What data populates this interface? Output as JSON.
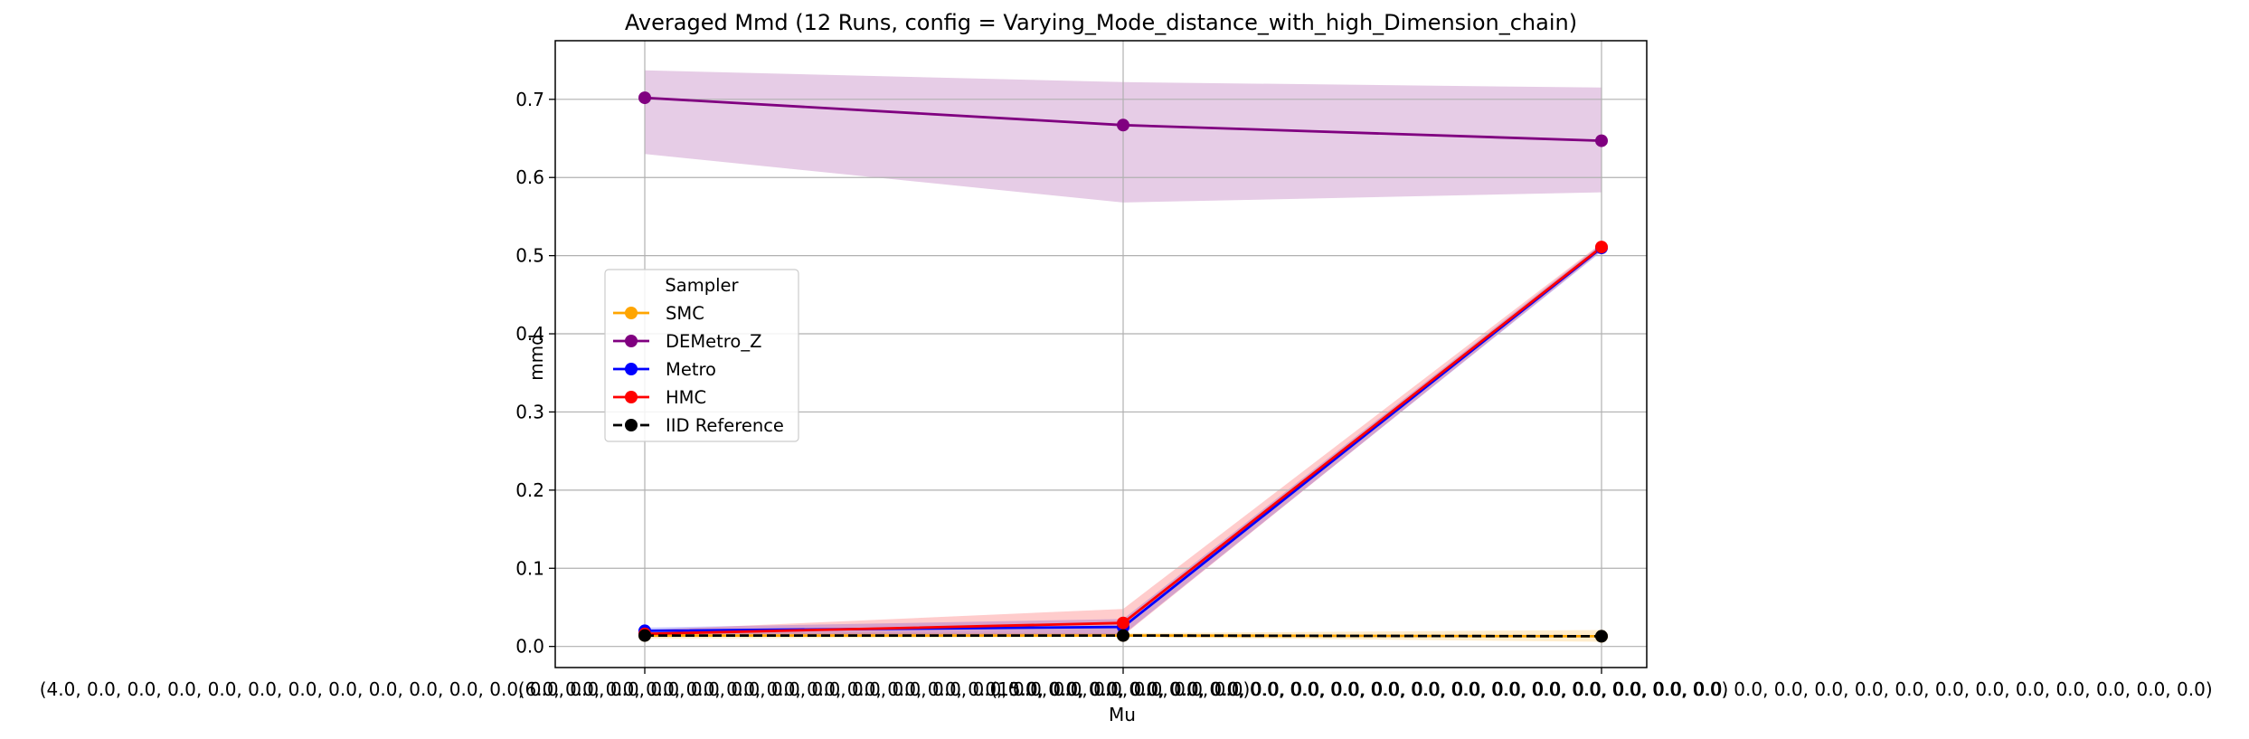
{
  "chart_data": {
    "type": "line",
    "title": "Averaged Mmd (12 Runs, config = Varying_Mode_distance_with_high_Dimension_chain)",
    "xlabel": "Mu",
    "ylabel": "mmd",
    "categories": [
      "(4.0, 0.0, 0.0, 0.0, 0.0, 0.0, 0.0, 0.0, 0.0, 0.0, 0.0, 0.0, 0.0, 0.0, 0.0, 0.0, 0.0, 0.0, 0.0, 0.0, 0.0, 0.0, 0.0, 0.0, 0.0, 0.0, 0.0, 0.0, 0.0, 0.0)",
      "(6.0, 0.0, 0.0, 0.0, 0.0, 0.0, 0.0, 0.0, 0.0, 0.0, 0.0, 0.0, 0.0, 0.0, 0.0, 0.0, 0.0, 0.0, 0.0, 0.0, 0.0, 0.0, 0.0, 0.0, 0.0, 0.0, 0.0, 0.0, 0.0, 0.0)",
      "(15.0, 0.0, 0.0, 0.0, 0.0, 0.0, 0.0, 0.0, 0.0, 0.0, 0.0, 0.0, 0.0, 0.0, 0.0, 0.0, 0.0, 0.0, 0.0, 0.0, 0.0, 0.0, 0.0, 0.0, 0.0, 0.0, 0.0, 0.0, 0.0, 0.0)"
    ],
    "ylim": [
      -0.027,
      0.775
    ],
    "yticks": [
      0.0,
      0.1,
      0.2,
      0.3,
      0.4,
      0.5,
      0.6,
      0.7
    ],
    "grid": true,
    "legend": {
      "title": "Sampler",
      "placement": "center-left"
    },
    "series": [
      {
        "name": "SMC",
        "color": "#ffa500",
        "dashed": false,
        "values": [
          0.014,
          0.014,
          0.013
        ],
        "lower": [
          0.01,
          0.012,
          0.006
        ],
        "upper": [
          0.018,
          0.017,
          0.021
        ]
      },
      {
        "name": "DEMetro_Z",
        "color": "#800080",
        "dashed": false,
        "values": [
          0.702,
          0.667,
          0.647
        ],
        "lower": [
          0.63,
          0.568,
          0.581
        ],
        "upper": [
          0.737,
          0.722,
          0.715
        ]
      },
      {
        "name": "Metro",
        "color": "#0000ff",
        "dashed": false,
        "values": [
          0.02,
          0.025,
          0.51
        ],
        "lower": [
          0.016,
          0.015,
          0.505
        ],
        "upper": [
          0.024,
          0.035,
          0.515
        ]
      },
      {
        "name": "HMC",
        "color": "#ff0000",
        "dashed": false,
        "values": [
          0.016,
          0.03,
          0.511
        ],
        "lower": [
          0.012,
          0.014,
          0.506
        ],
        "upper": [
          0.021,
          0.048,
          0.516
        ]
      },
      {
        "name": "IID Reference",
        "color": "#000000",
        "dashed": true,
        "values": [
          0.014,
          0.014,
          0.013
        ]
      }
    ]
  }
}
